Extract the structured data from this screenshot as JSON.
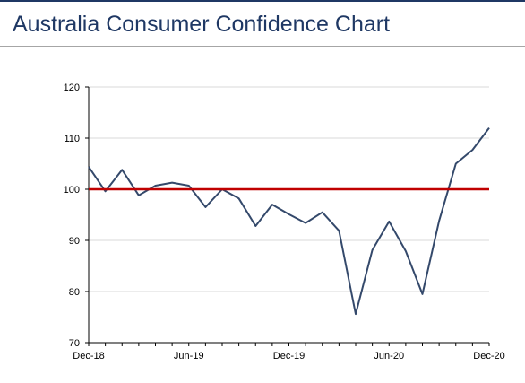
{
  "page": {
    "title": "Australia Consumer Confidence Chart"
  },
  "colors": {
    "title": "#1f3864",
    "series_line": "#34496b",
    "reference_line": "#c00000",
    "grid": "#d9d9d9",
    "axis": "#000000"
  },
  "chart_data": {
    "type": "line",
    "title": "",
    "xlabel": "",
    "ylabel": "",
    "ylim": [
      70,
      120
    ],
    "yticks": [
      70,
      80,
      90,
      100,
      110,
      120
    ],
    "grid": "horizontal",
    "x_tick_labels": [
      "Dec-18",
      "Jun-19",
      "Dec-19",
      "Jun-20",
      "Dec-20"
    ],
    "x_tick_indices": [
      0,
      6,
      12,
      18,
      24
    ],
    "x": [
      "Dec-18",
      "Jan-19",
      "Feb-19",
      "Mar-19",
      "Apr-19",
      "May-19",
      "Jun-19",
      "Jul-19",
      "Aug-19",
      "Sep-19",
      "Oct-19",
      "Nov-19",
      "Dec-19",
      "Jan-20",
      "Feb-20",
      "Mar-20",
      "Apr-20",
      "May-20",
      "Jun-20",
      "Jul-20",
      "Aug-20",
      "Sep-20",
      "Oct-20",
      "Nov-20",
      "Dec-20"
    ],
    "series": [
      {
        "values": [
          104.4,
          99.6,
          103.8,
          98.8,
          100.7,
          101.3,
          100.7,
          96.5,
          100.0,
          98.2,
          92.8,
          97.0,
          95.1,
          93.4,
          95.5,
          91.9,
          75.6,
          88.1,
          93.7,
          87.9,
          79.5,
          93.8,
          105.0,
          107.7,
          112.0
        ]
      }
    ],
    "reference_line": {
      "y": 100
    }
  }
}
